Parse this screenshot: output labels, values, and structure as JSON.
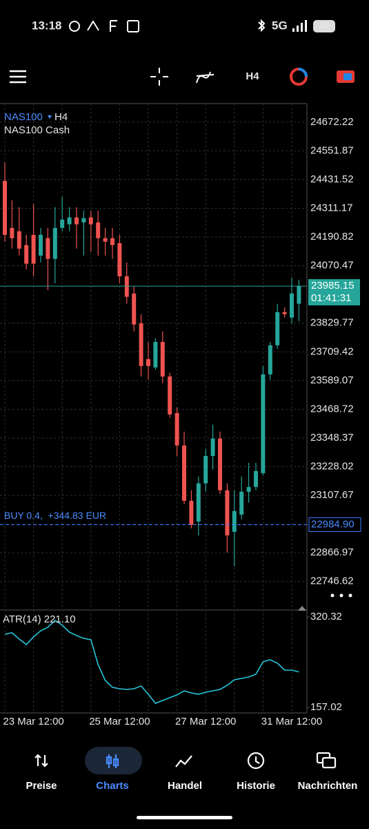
{
  "status_bar": {
    "time": "13:18",
    "network": "5G",
    "battery": "49"
  },
  "toolbar": {
    "timeframe": "H4"
  },
  "chart_data": [
    {
      "type": "candlestick",
      "symbol": "NAS100",
      "timeframe": "H4",
      "description": "NAS100 Cash",
      "categories": [
        null,
        null,
        null,
        null,
        "23 Mar 12:00",
        null,
        null,
        null,
        null,
        null,
        null,
        null,
        null,
        null,
        null,
        null,
        "25 Mar 12:00",
        null,
        null,
        null,
        null,
        null,
        null,
        null,
        null,
        null,
        null,
        null,
        "27 Mar 12:00",
        null,
        null,
        null,
        null,
        null,
        null,
        null,
        null,
        null,
        null,
        null,
        "31 Mar 12:00",
        null
      ],
      "open": [
        24426,
        24229,
        24215,
        24157,
        24200,
        24113,
        24186,
        24099,
        24229,
        24244,
        24273,
        24252,
        24273,
        24252,
        24186,
        24186,
        24165,
        24026,
        23954,
        23829,
        23679,
        23644,
        23751,
        23606,
        23453,
        23317,
        23085,
        22998,
        23158,
        23273,
        23346,
        23129,
        22955,
        23027,
        23123,
        23143,
        23201,
        23615,
        23737,
        23876,
        23853,
        23911
      ],
      "high": [
        24504,
        24345,
        24316,
        24200,
        24330,
        24229,
        24229,
        24316,
        24359,
        24316,
        24316,
        24302,
        24302,
        24302,
        24229,
        24229,
        24200,
        24084,
        23983,
        23867,
        23751,
        23766,
        23795,
        23621,
        23476,
        23375,
        23129,
        23187,
        23302,
        23404,
        23375,
        23158,
        23129,
        23187,
        23244,
        23244,
        23650,
        23751,
        23911,
        23896,
        24021,
        24012
      ],
      "low": [
        24171,
        24142,
        24113,
        24055,
        24026,
        24084,
        23968,
        23997,
        24215,
        24215,
        24142,
        24113,
        24128,
        24113,
        24113,
        24099,
        23997,
        23911,
        23795,
        23606,
        23592,
        23635,
        23578,
        23433,
        23273,
        23071,
        22969,
        22940,
        23123,
        23216,
        23114,
        22868,
        22810,
        23007,
        23077,
        23129,
        23192,
        23592,
        23722,
        23853,
        23829,
        23838
      ],
      "close": [
        24200,
        24186,
        24142,
        24079,
        24079,
        24200,
        24099,
        24229,
        24264,
        24273,
        24244,
        24270,
        24244,
        24186,
        24171,
        24157,
        24026,
        23940,
        23824,
        23650,
        23650,
        23751,
        23606,
        23447,
        23317,
        23085,
        22984,
        23158,
        23273,
        23346,
        23129,
        22940,
        23042,
        23123,
        23143,
        23210,
        23615,
        23737,
        23876,
        23867,
        23954,
        23985.15
      ],
      "up_color": "#26a69a",
      "down_color": "#ef5350",
      "ylim": [
        22630,
        24750
      ],
      "yticks": [
        24672.22,
        24551.87,
        24431.52,
        24311.17,
        24190.82,
        24070.47,
        23829.77,
        23709.42,
        23589.07,
        23468.72,
        23348.37,
        23228.02,
        23107.67,
        22866.97,
        22746.62
      ],
      "grid": true,
      "price_line": {
        "value": 23985.15,
        "countdown": "01:41:31"
      },
      "position_line": {
        "value": 22984.9,
        "label": "22984.90",
        "text": "BUY 0.4,  +344.83 EUR"
      }
    },
    {
      "type": "line",
      "title": "ATR(14) 221.10",
      "values": [
        289.2,
        291.7,
        280.4,
        270.5,
        284.2,
        295.4,
        301.6,
        314.1,
        305.4,
        292.9,
        286.7,
        281.7,
        279.2,
        234.3,
        205.6,
        193.2,
        190.7,
        189.4,
        190.7,
        195.7,
        180.7,
        164.5,
        169.5,
        174.5,
        179.5,
        186.9,
        183.2,
        180.7,
        184.4,
        186.9,
        189.4,
        196.9,
        206.9,
        209.4,
        211.9,
        216.9,
        239.3,
        243.0,
        236.8,
        224.3,
        224.3,
        221.1
      ],
      "color": "#26c6da",
      "ylim": [
        147,
        330.3
      ],
      "yticks": [
        320.32,
        157.02
      ]
    }
  ],
  "nav": [
    {
      "label": "Preise"
    },
    {
      "label": "Charts"
    },
    {
      "label": "Handel"
    },
    {
      "label": "Historie"
    },
    {
      "label": "Nachrichten"
    }
  ],
  "active_nav": 1
}
